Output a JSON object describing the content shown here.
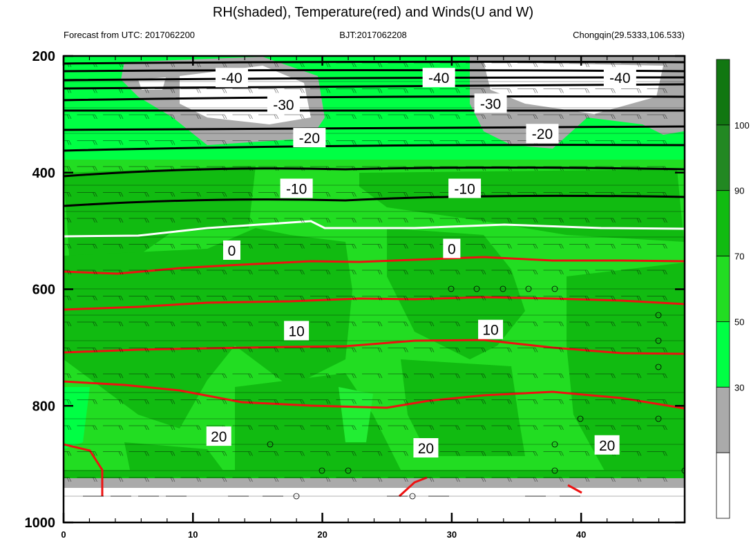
{
  "title": "RH(shaded), Temperature(red) and Winds(U and W)",
  "subtitle_left": "Forecast from UTC: 2017062200",
  "subtitle_center": "BJT:2017062208",
  "subtitle_right": "Chongqin(29.5333,106.533)",
  "chart_data": {
    "type": "heatmap",
    "description_fields": {
      "shaded_variable": "RH",
      "contour_variable": "Temperature",
      "vector_variable": "Winds (U and W)"
    },
    "x": {
      "range": [
        0,
        48
      ],
      "ticks": [
        0,
        10,
        20,
        30,
        40
      ]
    },
    "y": {
      "range": [
        1000,
        200
      ],
      "ticks": [
        200,
        400,
        600,
        800,
        1000
      ]
    },
    "colorbar": {
      "levels": [
        30,
        50,
        70,
        90,
        100
      ],
      "colors": [
        "#ffffff",
        "#aaaaaa",
        "#00ff44",
        "#22dd22",
        "#11bb11",
        "#228822",
        "#117711"
      ]
    },
    "temperature_contours": [
      {
        "label": "-40",
        "y": 228
      },
      {
        "label": "-30",
        "y": 282
      },
      {
        "label": "-20",
        "y": 340
      },
      {
        "label": "-10",
        "y": 425
      },
      {
        "label": "0",
        "y": 540
      },
      {
        "label": "10",
        "y": 672
      },
      {
        "label": "20",
        "y": 870
      }
    ],
    "contour_labels": [
      {
        "text": "-40",
        "x": 13,
        "p": 237
      },
      {
        "text": "-40",
        "x": 29,
        "p": 237
      },
      {
        "text": "-40",
        "x": 43,
        "p": 237
      },
      {
        "text": "-30",
        "x": 17,
        "p": 283
      },
      {
        "text": "-30",
        "x": 33,
        "p": 281
      },
      {
        "text": "-20",
        "x": 19,
        "p": 340
      },
      {
        "text": "-20",
        "x": 37,
        "p": 333
      },
      {
        "text": "-10",
        "x": 18,
        "p": 427
      },
      {
        "text": "-10",
        "x": 31,
        "p": 427
      },
      {
        "text": "0",
        "x": 13,
        "p": 533
      },
      {
        "text": "0",
        "x": 30,
        "p": 530
      },
      {
        "text": "10",
        "x": 18,
        "p": 671
      },
      {
        "text": "10",
        "x": 33,
        "p": 669
      },
      {
        "text": "20",
        "x": 12,
        "p": 852
      },
      {
        "text": "20",
        "x": 28,
        "p": 872
      },
      {
        "text": "20",
        "x": 42,
        "p": 867
      }
    ]
  }
}
